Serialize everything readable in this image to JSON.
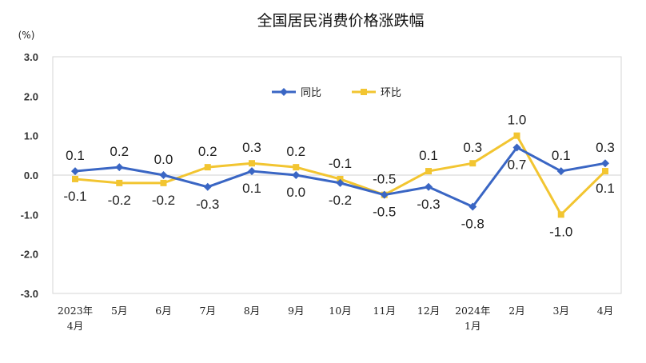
{
  "chart_data": {
    "type": "line",
    "title": "全国居民消费价格涨跌幅",
    "unit": "(%)",
    "ylim": [
      -3.0,
      3.0
    ],
    "yticks": [
      "3.0",
      "2.0",
      "1.0",
      "0.0",
      "-1.0",
      "-2.0",
      "-3.0"
    ],
    "categories": [
      [
        "2023年",
        "4月"
      ],
      [
        "5月"
      ],
      [
        "6月"
      ],
      [
        "7月"
      ],
      [
        "8月"
      ],
      [
        "9月"
      ],
      [
        "10月"
      ],
      [
        "11月"
      ],
      [
        "12月"
      ],
      [
        "2024年",
        "1月"
      ],
      [
        "2月"
      ],
      [
        "3月"
      ],
      [
        "4月"
      ]
    ],
    "legend_position": "top-center",
    "grid": false,
    "series": [
      {
        "name": "同比",
        "color": "#3a66c4",
        "values": [
          0.1,
          0.2,
          0.0,
          -0.3,
          0.1,
          0.0,
          -0.2,
          -0.5,
          -0.3,
          -0.8,
          0.7,
          0.1,
          0.3
        ],
        "labels": [
          "0.1",
          "0.2",
          "0.0",
          "-0.3",
          "0.1",
          "0.0",
          "-0.2",
          "-0.5",
          "-0.3",
          "-0.8",
          "0.7",
          "0.1",
          "0.3"
        ]
      },
      {
        "name": "环比",
        "color": "#f2c531",
        "values": [
          -0.1,
          -0.2,
          -0.2,
          0.2,
          0.3,
          0.2,
          -0.1,
          -0.5,
          0.1,
          0.3,
          1.0,
          -1.0,
          0.1
        ],
        "labels": [
          "-0.1",
          "-0.2",
          "-0.2",
          "0.2",
          "0.3",
          "0.2",
          "-0.1",
          "-0.5",
          "0.1",
          "0.3",
          "1.0",
          "-1.0",
          "0.1"
        ]
      }
    ]
  }
}
